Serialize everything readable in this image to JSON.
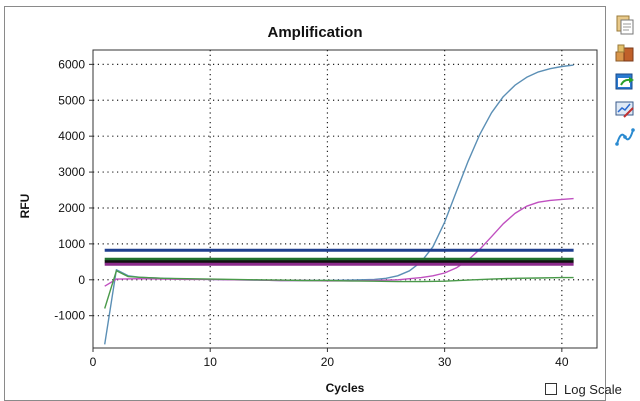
{
  "toolbar": {
    "icons": [
      "copy-icon",
      "export-data-icon",
      "refresh-icon",
      "chart-settings-icon",
      "curve-icon"
    ]
  },
  "log_scale": {
    "label": "Log Scale",
    "checked": false
  },
  "chart_data": {
    "type": "line",
    "title": "Amplification",
    "xlabel": "Cycles",
    "ylabel": "RFU",
    "xlim": [
      0,
      43
    ],
    "ylim": [
      -1900,
      6400
    ],
    "xticks": [
      0,
      10,
      20,
      30,
      40
    ],
    "yticks": [
      -1000,
      0,
      1000,
      2000,
      3000,
      4000,
      5000,
      6000
    ],
    "grid": true,
    "legend": "none",
    "series": [
      {
        "color": "#5b8fb5",
        "x": [
          1,
          2,
          3,
          4,
          6,
          8,
          10,
          12,
          14,
          16,
          18,
          20,
          22,
          24,
          25,
          26,
          27,
          28,
          29,
          30,
          31,
          32,
          33,
          34,
          35,
          36,
          37,
          38,
          39,
          40,
          41
        ],
        "y": [
          -1800,
          280,
          110,
          70,
          40,
          20,
          10,
          0,
          -10,
          -20,
          -20,
          -20,
          -10,
          10,
          40,
          110,
          250,
          500,
          920,
          1600,
          2450,
          3300,
          4050,
          4650,
          5100,
          5420,
          5640,
          5790,
          5880,
          5940,
          5980
        ]
      },
      {
        "color": "#c050c0",
        "x": [
          1,
          2,
          4,
          6,
          8,
          10,
          12,
          14,
          16,
          18,
          20,
          22,
          24,
          26,
          28,
          29,
          30,
          31,
          32,
          33,
          34,
          35,
          36,
          37,
          38,
          39,
          40,
          41
        ],
        "y": [
          -180,
          20,
          30,
          20,
          10,
          10,
          0,
          -10,
          -20,
          -20,
          -30,
          -30,
          -20,
          0,
          60,
          110,
          190,
          330,
          550,
          850,
          1200,
          1560,
          1850,
          2050,
          2160,
          2210,
          2240,
          2260
        ]
      },
      {
        "color": "#4a9a4a",
        "x": [
          1,
          2,
          3,
          4,
          6,
          8,
          10,
          12,
          14,
          16,
          18,
          20,
          22,
          24,
          26,
          28,
          30,
          32,
          34,
          36,
          38,
          40,
          41
        ],
        "y": [
          -800,
          250,
          90,
          70,
          40,
          30,
          20,
          10,
          0,
          -10,
          -20,
          -20,
          -30,
          -40,
          -50,
          -50,
          -40,
          -10,
          20,
          40,
          50,
          60,
          60
        ]
      },
      {
        "color": "#1f3f8f",
        "x": [
          1,
          41
        ],
        "y": [
          820,
          820
        ]
      },
      {
        "color": "#1f6f2f",
        "x": [
          1,
          41
        ],
        "y": [
          570,
          570
        ]
      },
      {
        "color": "#101010",
        "x": [
          1,
          41
        ],
        "y": [
          500,
          500
        ]
      },
      {
        "color": "#8a2a8a",
        "x": [
          1,
          41
        ],
        "y": [
          430,
          430
        ]
      }
    ]
  }
}
